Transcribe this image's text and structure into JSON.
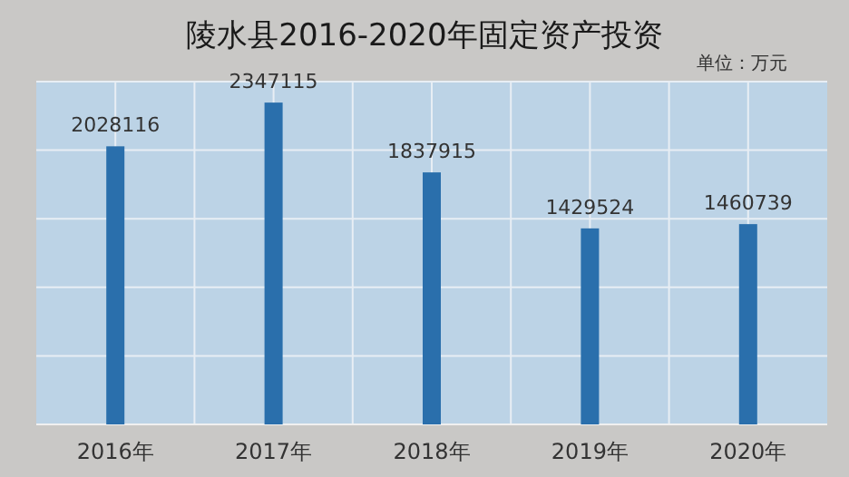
{
  "chart_data": {
    "type": "bar",
    "title": "陵水县2016-2020年固定资产投资",
    "annotations": [
      "单位：万元"
    ],
    "categories": [
      "2016年",
      "2017年",
      "2018年",
      "2019年",
      "2020年"
    ],
    "values": [
      2028116,
      2347115,
      1837915,
      1429524,
      1460739
    ],
    "color": "#2a6fac",
    "data_labels": true,
    "grid": true,
    "tick_labels": "x",
    "ylim": [
      0,
      2500000
    ],
    "yticks": [
      {
        "value": 0,
        "label": null
      },
      {
        "value": 500000,
        "label": null
      },
      {
        "value": 1000000,
        "label": null
      },
      {
        "value": 1500000,
        "label": null
      },
      {
        "value": 2000000,
        "label": null
      },
      {
        "value": 2500000,
        "label": null
      }
    ]
  }
}
